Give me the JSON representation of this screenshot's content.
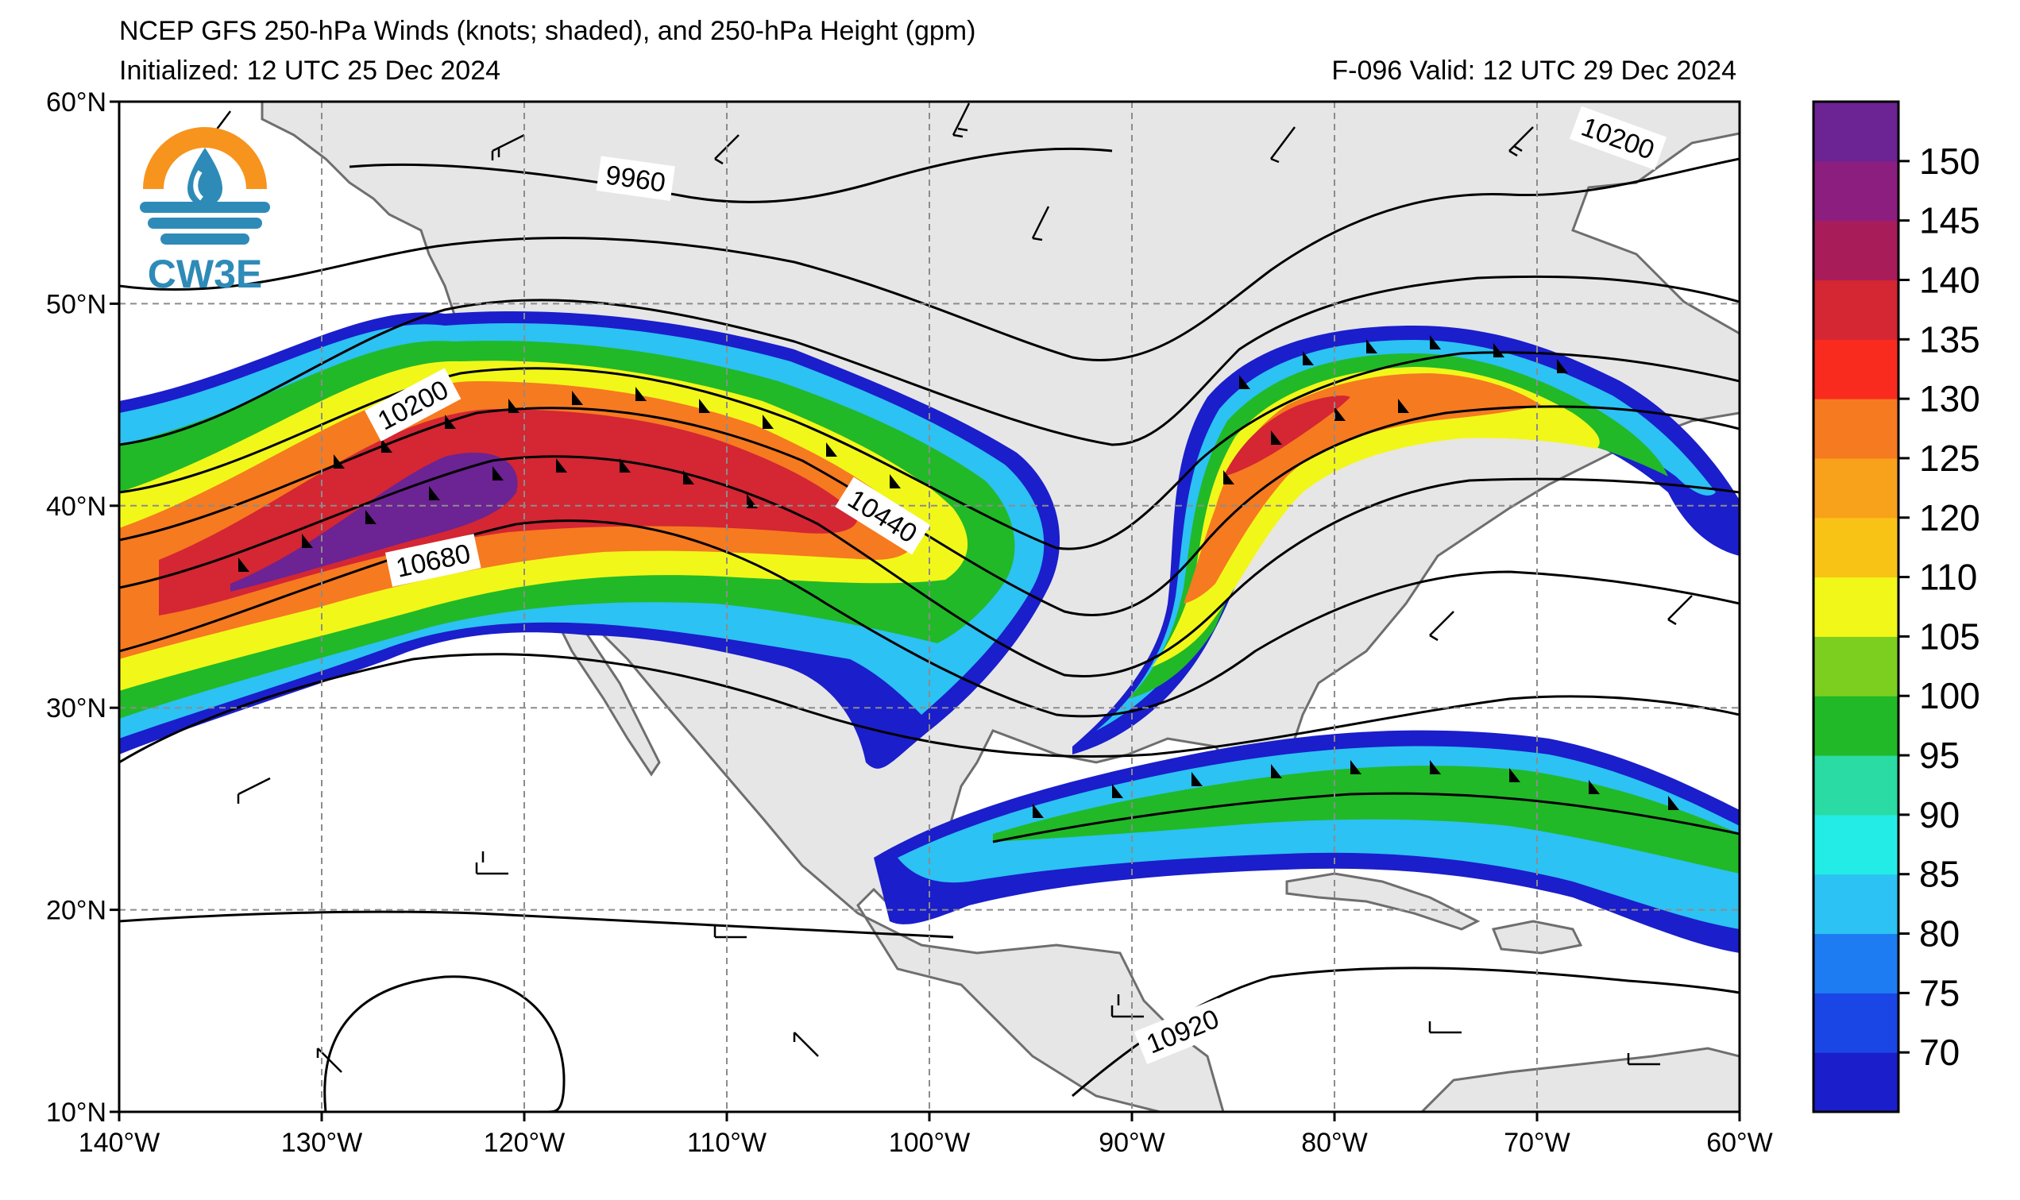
{
  "header": {
    "title": "NCEP GFS 250-hPa Winds (knots; shaded), and 250-hPa Height (gpm)",
    "initialized": "Initialized: 12 UTC 25 Dec 2024",
    "valid": "F-096  Valid: 12 UTC 29 Dec 2024"
  },
  "logo": {
    "text": "CW3E",
    "colors": {
      "orange": "#f7941d",
      "blue": "#2e8bb8"
    }
  },
  "map": {
    "lon_range": [
      -140,
      -60
    ],
    "lat_range": [
      10,
      60
    ],
    "lat_labels": [
      "60°N",
      "50°N",
      "40°N",
      "30°N",
      "20°N",
      "10°N"
    ],
    "lon_labels": [
      "140°W",
      "130°W",
      "120°W",
      "110°W",
      "100°W",
      "90°W",
      "80°W",
      "70°W",
      "60°W"
    ],
    "gridlines": true,
    "land_color": "#e6e6e6",
    "ocean_color": "#ffffff"
  },
  "height_contour_labels": [
    {
      "text": "9960",
      "lon": -114.5,
      "lat": 56.2,
      "angle": 8
    },
    {
      "text": "10200",
      "lon": -125.5,
      "lat": 45.0,
      "angle": -28
    },
    {
      "text": "10200",
      "lon": -66.0,
      "lat": 58.2,
      "angle": 20
    },
    {
      "text": "10440",
      "lon": -102.3,
      "lat": 39.5,
      "angle": 32
    },
    {
      "text": "10680",
      "lon": -124.5,
      "lat": 37.3,
      "angle": -12
    },
    {
      "text": "10920",
      "lon": -87.5,
      "lat": 14.0,
      "angle": -22
    }
  ],
  "colorbar": {
    "labels": [
      "150",
      "145",
      "140",
      "135",
      "130",
      "125",
      "120",
      "110",
      "105",
      "100",
      "95",
      "90",
      "85",
      "80",
      "75",
      "70"
    ],
    "colors": [
      "#1b1ecb",
      "#1a46e6",
      "#1e7cf2",
      "#2cc2f3",
      "#23ece6",
      "#2adba4",
      "#21b928",
      "#7ccf1f",
      "#f2f71a",
      "#f9c316",
      "#f8a11b",
      "#f67a20",
      "#f92b1f",
      "#d42633",
      "#a81c5a",
      "#8c1e80",
      "#6c2393"
    ]
  }
}
